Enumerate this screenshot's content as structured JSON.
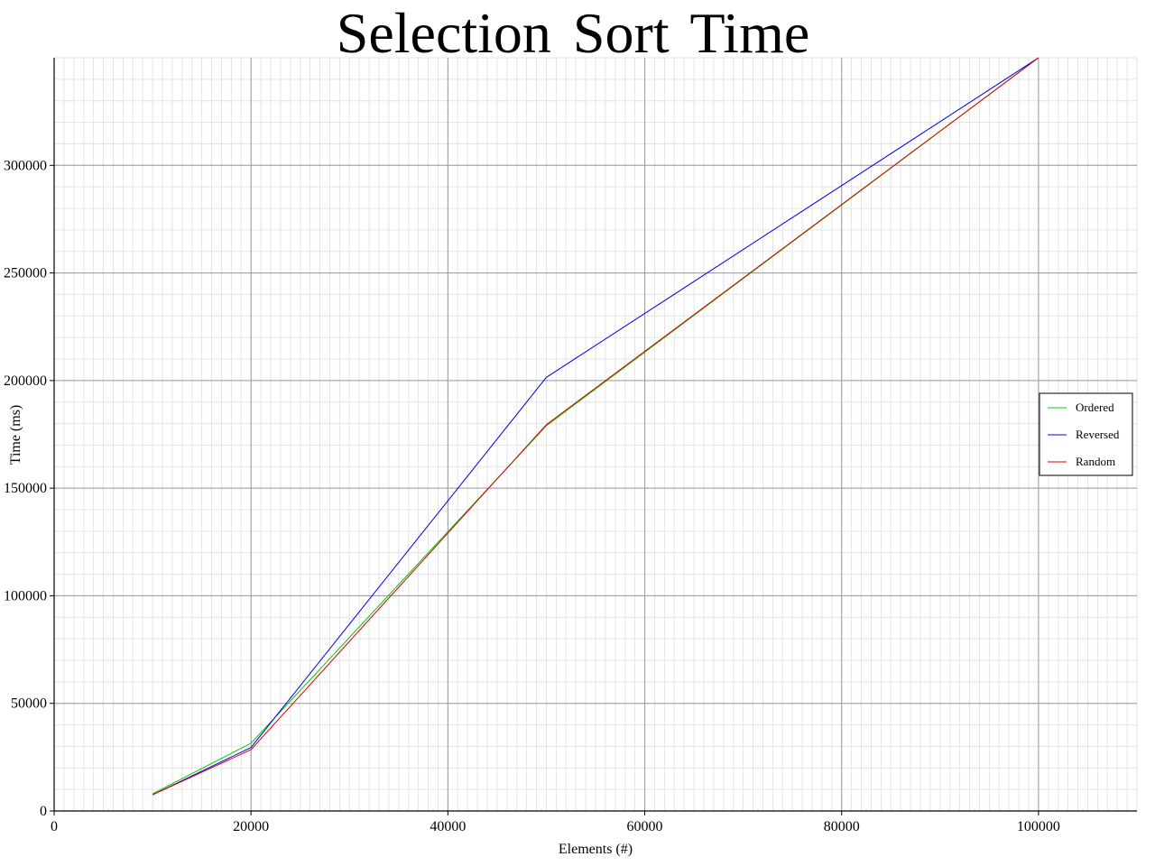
{
  "chart_data": {
    "type": "line",
    "title": "Selection Sort Time",
    "xlabel": "Elements (#)",
    "ylabel": "Time (ms)",
    "xlim": [
      0,
      110000
    ],
    "ylim": [
      0,
      350000
    ],
    "x_ticks": [
      0,
      20000,
      40000,
      60000,
      80000,
      100000
    ],
    "y_ticks": [
      0,
      50000,
      100000,
      150000,
      200000,
      250000,
      300000
    ],
    "x_tick_labels": [
      "0",
      "20000",
      "40000",
      "60000",
      "80000",
      "100000"
    ],
    "y_tick_labels": [
      "0",
      "50000",
      "100000",
      "150000",
      "200000",
      "250000",
      "300000"
    ],
    "grid": true,
    "legend_position": "right",
    "x": [
      10000,
      20000,
      50000,
      100000
    ],
    "series": [
      {
        "name": "Ordered",
        "color": "#00cc00",
        "values": [
          8000,
          31500,
          179000,
          350000
        ]
      },
      {
        "name": "Reversed",
        "color": "#0000ee",
        "values": [
          7500,
          29500,
          201500,
          350000
        ]
      },
      {
        "name": "Random",
        "color": "#dd0000",
        "values": [
          7500,
          28500,
          179500,
          350000
        ]
      }
    ]
  }
}
